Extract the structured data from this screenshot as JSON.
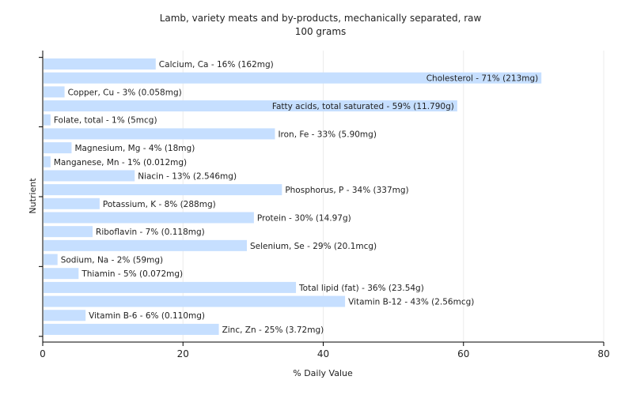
{
  "chart_data": {
    "type": "bar",
    "orientation": "horizontal",
    "title": "Lamb, variety meats and by-products, mechanically separated, raw",
    "subtitle": "100 grams",
    "xlabel": "% Daily Value",
    "ylabel": "Nutrient",
    "xlim": [
      0,
      80
    ],
    "xticks": [
      0,
      20,
      40,
      60,
      80
    ],
    "grid": true,
    "bar_color": "#c6dfff",
    "categories": [
      "Calcium, Ca",
      "Cholesterol",
      "Copper, Cu",
      "Fatty acids, total saturated",
      "Folate, total",
      "Iron, Fe",
      "Magnesium, Mg",
      "Manganese, Mn",
      "Niacin",
      "Phosphorus, P",
      "Potassium, K",
      "Protein",
      "Riboflavin",
      "Selenium, Se",
      "Sodium, Na",
      "Thiamin",
      "Total lipid (fat)",
      "Vitamin B-12",
      "Vitamin B-6",
      "Zinc, Zn"
    ],
    "values": [
      16,
      71,
      3,
      59,
      1,
      33,
      4,
      1,
      13,
      34,
      8,
      30,
      7,
      29,
      2,
      5,
      36,
      43,
      6,
      25
    ],
    "labels": [
      "Calcium, Ca - 16% (162mg)",
      "Cholesterol - 71% (213mg)",
      "Copper, Cu - 3% (0.058mg)",
      "Fatty acids, total saturated - 59% (11.790g)",
      "Folate, total - 1% (5mcg)",
      "Iron, Fe - 33% (5.90mg)",
      "Magnesium, Mg - 4% (18mg)",
      "Manganese, Mn - 1% (0.012mg)",
      "Niacin - 13% (2.546mg)",
      "Phosphorus, P - 34% (337mg)",
      "Potassium, K - 8% (288mg)",
      "Protein - 30% (14.97g)",
      "Riboflavin - 7% (0.118mg)",
      "Selenium, Se - 29% (20.1mcg)",
      "Sodium, Na - 2% (59mg)",
      "Thiamin - 5% (0.072mg)",
      "Total lipid (fat) - 36% (23.54g)",
      "Vitamin B-12 - 43% (2.56mcg)",
      "Vitamin B-6 - 6% (0.110mg)",
      "Zinc, Zn - 25% (3.72mg)"
    ]
  }
}
